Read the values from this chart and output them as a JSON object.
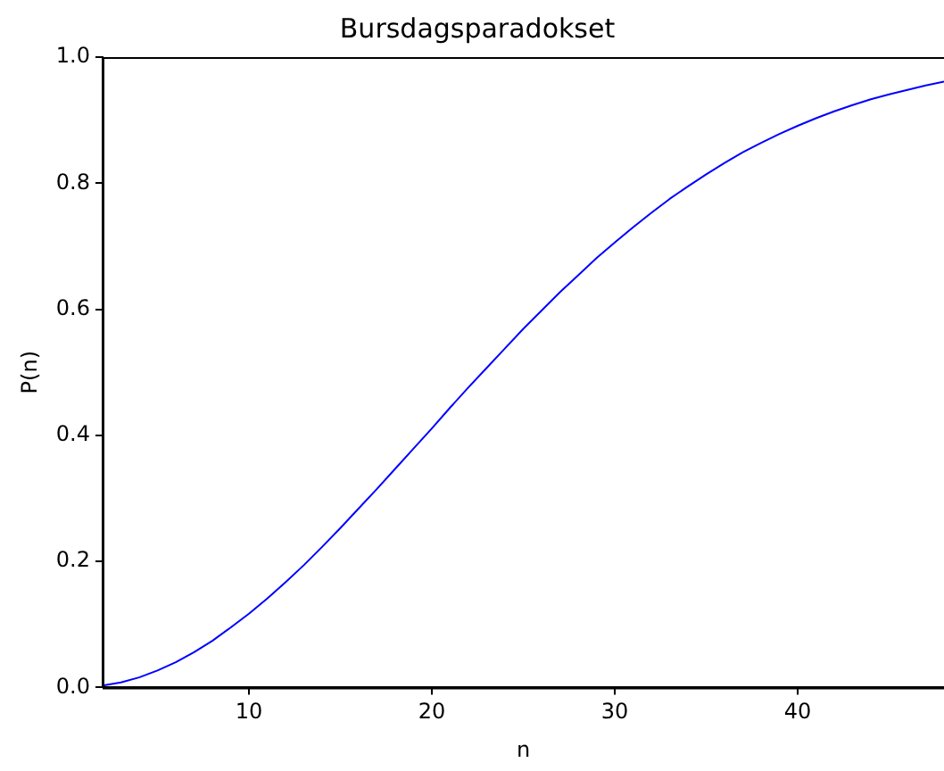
{
  "chart_data": {
    "type": "line",
    "title": "Bursdagsparadokset",
    "xlabel": "n",
    "ylabel": "P(n)",
    "x": [
      2,
      3,
      4,
      5,
      6,
      7,
      8,
      9,
      10,
      11,
      12,
      13,
      14,
      15,
      16,
      17,
      18,
      19,
      20,
      21,
      22,
      23,
      24,
      25,
      26,
      27,
      28,
      29,
      30,
      31,
      32,
      33,
      34,
      35,
      36,
      37,
      38,
      39,
      40,
      41,
      42,
      43,
      44,
      45,
      46,
      47,
      48
    ],
    "series": [
      {
        "color": "#0000ff",
        "values": [
          0.003,
          0.008,
          0.016,
          0.027,
          0.04,
          0.056,
          0.074,
          0.095,
          0.117,
          0.141,
          0.167,
          0.194,
          0.223,
          0.253,
          0.284,
          0.315,
          0.347,
          0.379,
          0.411,
          0.444,
          0.476,
          0.507,
          0.538,
          0.569,
          0.598,
          0.627,
          0.654,
          0.681,
          0.706,
          0.73,
          0.753,
          0.775,
          0.795,
          0.814,
          0.832,
          0.849,
          0.864,
          0.878,
          0.891,
          0.903,
          0.914,
          0.924,
          0.933,
          0.941,
          0.948,
          0.955,
          0.961
        ]
      }
    ],
    "xlim": [
      2,
      48
    ],
    "xticks": [
      10,
      20,
      30,
      40
    ],
    "ylim": [
      0,
      1
    ],
    "yticks": [
      {
        "value": 0,
        "label": "0.0"
      },
      {
        "value": 0.2,
        "label": "0.2"
      },
      {
        "value": 0.4,
        "label": "0.4"
      },
      {
        "value": 0.6,
        "label": "0.6"
      },
      {
        "value": 0.8,
        "label": "0.8"
      },
      {
        "value": 1,
        "label": "1.0"
      }
    ],
    "grid": false,
    "legend": false,
    "marker": "none",
    "line_style": "solid"
  }
}
